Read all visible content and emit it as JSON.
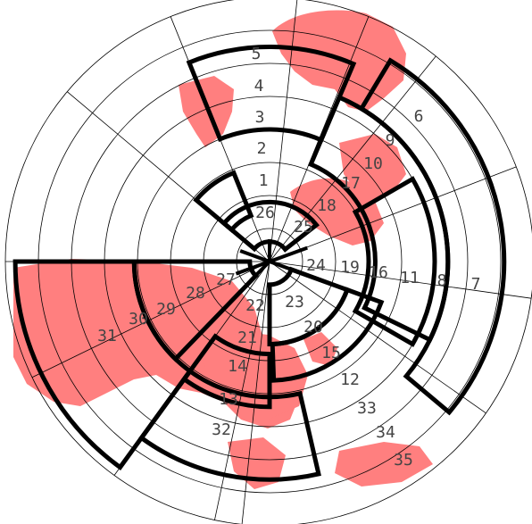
{
  "colors": {
    "land": "#ff7f7f",
    "background": "#ffffff",
    "zone_boundary": "#000000",
    "grid": "#000000",
    "label": "#444444"
  },
  "zone_labels": [
    "1",
    "2",
    "3",
    "4",
    "5",
    "6",
    "7",
    "8",
    "9",
    "10",
    "11",
    "12",
    "13",
    "14",
    "15",
    "16",
    "17",
    "18",
    "19",
    "20",
    "21",
    "22",
    "23",
    "24",
    "25",
    "26",
    "27",
    "28",
    "29",
    "30",
    "31",
    "32",
    "33",
    "34",
    "35"
  ]
}
